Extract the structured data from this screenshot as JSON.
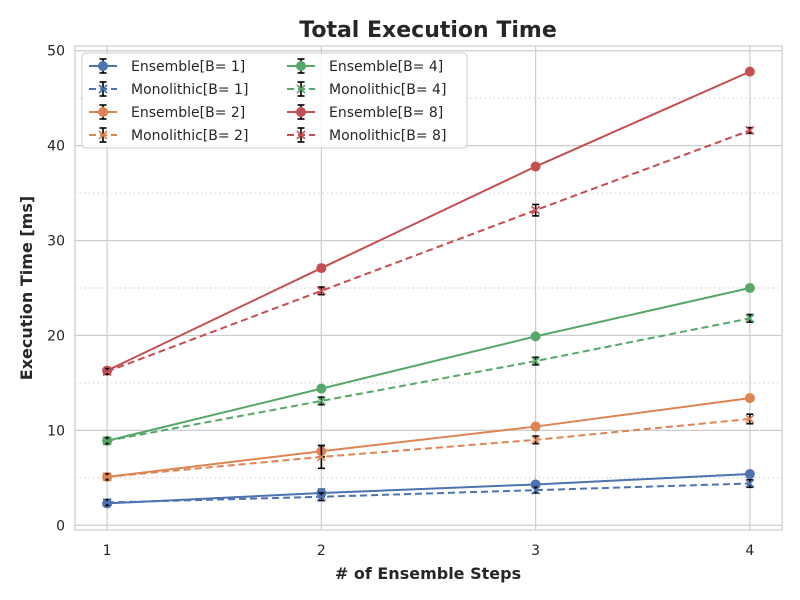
{
  "chart_data": {
    "type": "line",
    "title": "Total Execution Time",
    "xlabel": "# of Ensemble Steps",
    "ylabel": "Execution Time [ms]",
    "x": [
      1,
      2,
      3,
      4
    ],
    "xticks": [
      "1",
      "2",
      "3",
      "4"
    ],
    "yticks": [
      "0",
      "10",
      "20",
      "30",
      "40",
      "50"
    ],
    "xlim": [
      0.85,
      4.15
    ],
    "ylim": [
      -0.5,
      50.5
    ],
    "grid": true,
    "legend_position": "upper-left",
    "legend_columns": 2,
    "series": [
      {
        "name": "Ensemble[B= 1]",
        "color": "#4c72b0",
        "dash": "solid",
        "marker": "circle",
        "values": [
          2.3,
          3.4,
          4.3,
          5.4
        ],
        "err": [
          0.3,
          0.4,
          0.3,
          0.3
        ]
      },
      {
        "name": "Monolithic[B= 1]",
        "color": "#4c72b0",
        "dash": "dashed",
        "marker": "x",
        "values": [
          2.4,
          3.0,
          3.7,
          4.4
        ],
        "err": [
          0.3,
          0.4,
          0.3,
          0.4
        ]
      },
      {
        "name": "Ensemble[B= 2]",
        "color": "#dd8452",
        "dash": "solid",
        "marker": "circle",
        "values": [
          5.1,
          7.8,
          10.4,
          13.4
        ],
        "err": [
          0.3,
          0.6,
          0.3,
          0.3
        ]
      },
      {
        "name": "Monolithic[B= 2]",
        "color": "#dd8452",
        "dash": "dashed",
        "marker": "x",
        "values": [
          5.1,
          7.2,
          9.0,
          11.2
        ],
        "err": [
          0.3,
          1.2,
          0.4,
          0.5
        ]
      },
      {
        "name": "Ensemble[B= 4]",
        "color": "#55a868",
        "dash": "solid",
        "marker": "circle",
        "values": [
          8.9,
          14.4,
          19.9,
          25.0
        ],
        "err": [
          0.3,
          0.3,
          0.3,
          0.3
        ]
      },
      {
        "name": "Monolithic[B= 4]",
        "color": "#55a868",
        "dash": "dashed",
        "marker": "x",
        "values": [
          8.9,
          13.1,
          17.3,
          21.8
        ],
        "err": [
          0.3,
          0.4,
          0.4,
          0.4
        ]
      },
      {
        "name": "Ensemble[B= 8]",
        "color": "#c44e52",
        "dash": "solid",
        "marker": "circle",
        "values": [
          16.3,
          27.1,
          37.8,
          47.8
        ],
        "err": [
          0.3,
          0.3,
          0.3,
          0.3
        ]
      },
      {
        "name": "Monolithic[B= 8]",
        "color": "#c44e52",
        "dash": "dashed",
        "marker": "x",
        "values": [
          16.2,
          24.7,
          33.2,
          41.6
        ],
        "err": [
          0.3,
          0.4,
          0.6,
          0.3
        ]
      }
    ]
  }
}
